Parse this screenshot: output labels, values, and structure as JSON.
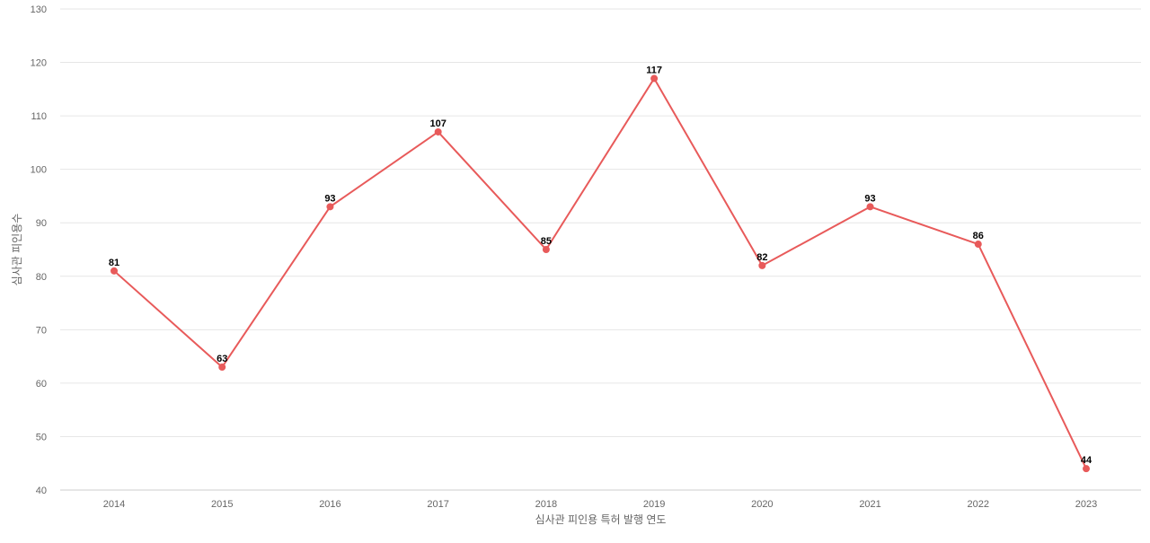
{
  "chart_data": {
    "type": "line",
    "title": "",
    "xlabel": "심사관 피인용 특허 발행 연도",
    "ylabel": "심사관 피인용수",
    "categories": [
      "2014",
      "2015",
      "2016",
      "2017",
      "2018",
      "2019",
      "2020",
      "2021",
      "2022",
      "2023"
    ],
    "series": [
      {
        "values": [
          81,
          63,
          93,
          107,
          85,
          117,
          82,
          93,
          86,
          44
        ],
        "color": "#e85a5a"
      }
    ],
    "ylim": [
      40,
      130
    ],
    "yticks": [
      40,
      50,
      60,
      70,
      80,
      90,
      100,
      110,
      120,
      130
    ],
    "grid": true,
    "legend": "none",
    "data_labels": true
  }
}
